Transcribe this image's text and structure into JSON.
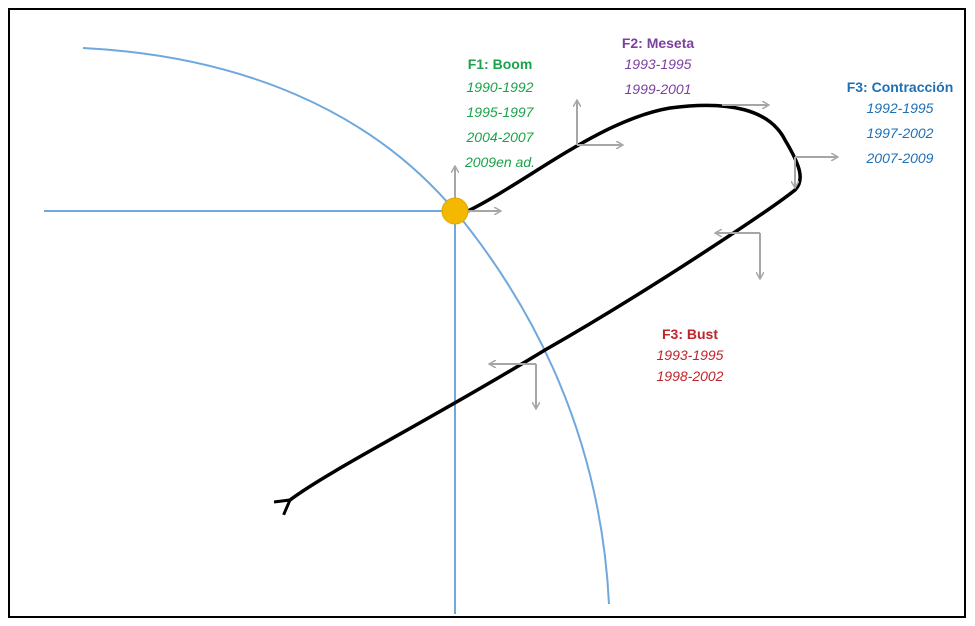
{
  "phases": [
    {
      "id": "boom",
      "title": "F1: Boom",
      "color": "#1aa34a",
      "periods": [
        "1990-1992",
        "1995-1997",
        "2004-2007",
        "2009en ad."
      ]
    },
    {
      "id": "meseta",
      "title": "F2: Meseta",
      "color": "#7b3fa0",
      "periods": [
        "1993-1995",
        "1999-2001"
      ]
    },
    {
      "id": "contraccion",
      "title": "F3: Contracción",
      "color": "#1f6fb5",
      "periods": [
        "1992-1995",
        "1997-2002",
        "2007-2009"
      ]
    },
    {
      "id": "bust",
      "title": "F3: Bust",
      "color": "#c0242b",
      "periods": [
        "1993-1995",
        "1998-2002"
      ]
    }
  ],
  "colors": {
    "axis": "#6fa8dc",
    "curve": "#000000",
    "arrows": "#a6a6a6",
    "origin_point": "#f5b800"
  }
}
